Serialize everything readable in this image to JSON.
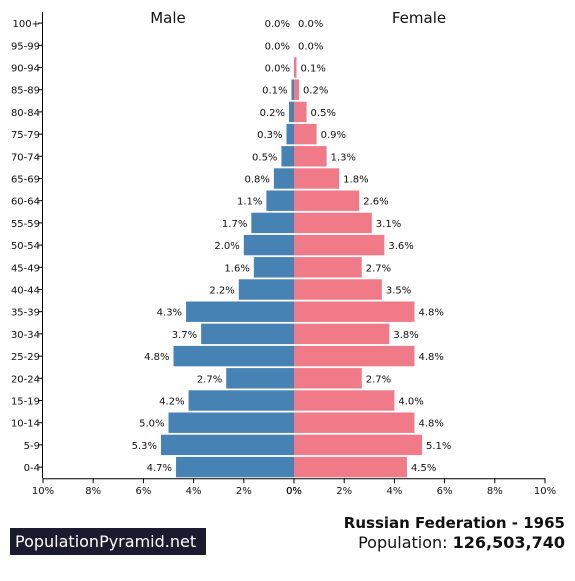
{
  "site": {
    "logo_text": "PopulationPyramid.net"
  },
  "footer": {
    "title": "Russian Federation - 1965",
    "population_label": "Population:",
    "population_value": "126,503,740"
  },
  "colors": {
    "male": "#4682b4",
    "female": "#f07a87",
    "axis": "#000000"
  },
  "chart_data": {
    "type": "bar",
    "orientation": "horizontal-pyramid",
    "left_header": "Male",
    "right_header": "Female",
    "categories": [
      "100+",
      "95-99",
      "90-94",
      "85-89",
      "80-84",
      "75-79",
      "70-74",
      "65-69",
      "60-64",
      "55-59",
      "50-54",
      "45-49",
      "40-44",
      "35-39",
      "30-34",
      "25-29",
      "20-24",
      "15-19",
      "10-14",
      "5-9",
      "0-4"
    ],
    "series": [
      {
        "name": "Male",
        "values": [
          0.0,
          0.0,
          0.0,
          0.1,
          0.2,
          0.3,
          0.5,
          0.8,
          1.1,
          1.7,
          2.0,
          1.6,
          2.2,
          4.3,
          3.7,
          4.8,
          2.7,
          4.2,
          5.0,
          5.3,
          4.7
        ],
        "labels": [
          "0.0%",
          "0.0%",
          "0.0%",
          "0.1%",
          "0.2%",
          "0.3%",
          "0.5%",
          "0.8%",
          "1.1%",
          "1.7%",
          "2.0%",
          "1.6%",
          "2.2%",
          "4.3%",
          "3.7%",
          "4.8%",
          "2.7%",
          "4.2%",
          "5.0%",
          "5.3%",
          "4.7%"
        ]
      },
      {
        "name": "Female",
        "values": [
          0.0,
          0.0,
          0.1,
          0.2,
          0.5,
          0.9,
          1.3,
          1.8,
          2.6,
          3.1,
          3.6,
          2.7,
          3.5,
          4.8,
          3.8,
          4.8,
          2.7,
          4.0,
          4.8,
          5.1,
          4.5
        ],
        "labels": [
          "0.0%",
          "0.0%",
          "0.1%",
          "0.2%",
          "0.5%",
          "0.9%",
          "1.3%",
          "1.8%",
          "2.6%",
          "3.1%",
          "3.6%",
          "2.7%",
          "3.5%",
          "4.8%",
          "3.8%",
          "4.8%",
          "2.7%",
          "4.0%",
          "4.8%",
          "5.1%",
          "4.5%"
        ]
      }
    ],
    "xlim": [
      0,
      10
    ],
    "left_ticks": [
      "10%",
      "8%",
      "6%",
      "4%",
      "2%",
      "0%"
    ],
    "right_ticks": [
      "0%",
      "2%",
      "4%",
      "6%",
      "8%",
      "10%"
    ],
    "tick_values": [
      10,
      8,
      6,
      4,
      2,
      0
    ],
    "grid": false
  }
}
